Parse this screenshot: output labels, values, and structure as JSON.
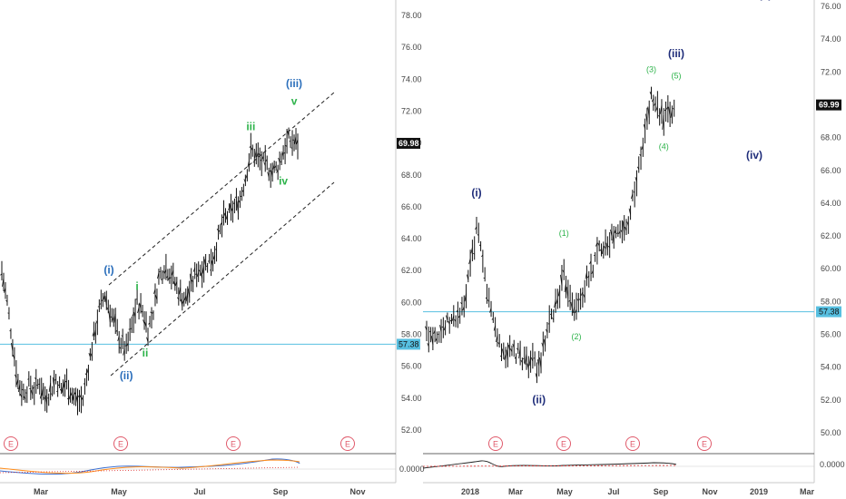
{
  "colors": {
    "blue_wave": "#2a6ebb",
    "navy_wave": "#1f2d7a",
    "green_wave": "#2db34a",
    "hline": "#57bfe0",
    "earnings": "#e05a6b",
    "candles": "#111111"
  },
  "left_panel": {
    "price_label": "69.98",
    "hline_label": "57.38",
    "earnings_marker": "E",
    "oscillator_label": "0.0000"
  },
  "right_panel": {
    "price_label": "69.99",
    "hline_label": "57.38",
    "earnings_marker": "E",
    "oscillator_label": "0.0000"
  },
  "chart_data": [
    {
      "type": "ohlc",
      "panel": "left",
      "y_ticks": [
        "78.00",
        "76.00",
        "74.00",
        "72.00",
        "70.00",
        "68.00",
        "66.00",
        "64.00",
        "62.00",
        "60.00",
        "58.00",
        "56.00",
        "54.00",
        "52.00"
      ],
      "ylim": [
        51,
        79
      ],
      "x_ticks": [
        "Mar",
        "May",
        "Jul",
        "Sep",
        "Nov"
      ],
      "horizontal_line": 57.38,
      "last_price": 69.98,
      "series": [
        {
          "x": "Feb 2",
          "y": 62.0
        },
        {
          "x": "Feb 6",
          "y": 60.0
        },
        {
          "x": "Feb 10",
          "y": 57.5
        },
        {
          "x": "Feb 14",
          "y": 55.0
        },
        {
          "x": "Feb 18",
          "y": 54.3
        },
        {
          "x": "Feb 22",
          "y": 54.8
        },
        {
          "x": "Feb 26",
          "y": 54.5
        },
        {
          "x": "Mar 2",
          "y": 55.0
        },
        {
          "x": "Mar 6",
          "y": 54.0
        },
        {
          "x": "Mar 10",
          "y": 54.5
        },
        {
          "x": "Mar 14",
          "y": 55.2
        },
        {
          "x": "Mar 18",
          "y": 54.5
        },
        {
          "x": "Mar 22",
          "y": 55.0
        },
        {
          "x": "Mar 26",
          "y": 54.2
        },
        {
          "x": "Mar 30",
          "y": 53.8
        },
        {
          "x": "Apr 3",
          "y": 53.9
        },
        {
          "x": "Apr 7",
          "y": 56.0
        },
        {
          "x": "Apr 11",
          "y": 57.8
        },
        {
          "x": "Apr 15",
          "y": 59.5
        },
        {
          "x": "Apr 19",
          "y": 60.5
        },
        {
          "x": "Apr 23",
          "y": 59.5
        },
        {
          "x": "Apr 27",
          "y": 58.5
        },
        {
          "x": "May 1",
          "y": 57.5
        },
        {
          "x": "May 5",
          "y": 57.0
        },
        {
          "x": "May 9",
          "y": 58.5
        },
        {
          "x": "May 13",
          "y": 60.0
        },
        {
          "x": "May 17",
          "y": 59.5
        },
        {
          "x": "May 21",
          "y": 58.3
        },
        {
          "x": "May 25",
          "y": 59.5
        },
        {
          "x": "May 29",
          "y": 61.5
        },
        {
          "x": "Jun 2",
          "y": 62.3
        },
        {
          "x": "Jun 6",
          "y": 62.0
        },
        {
          "x": "Jun 10",
          "y": 61.2
        },
        {
          "x": "Jun 14",
          "y": 60.5
        },
        {
          "x": "Jun 18",
          "y": 60.2
        },
        {
          "x": "Jun 22",
          "y": 61.0
        },
        {
          "x": "Jun 26",
          "y": 62.0
        },
        {
          "x": "Jun 30",
          "y": 62.2
        },
        {
          "x": "Jul 4",
          "y": 62.5
        },
        {
          "x": "Jul 8",
          "y": 62.8
        },
        {
          "x": "Jul 12",
          "y": 64.0
        },
        {
          "x": "Jul 16",
          "y": 65.2
        },
        {
          "x": "Jul 20",
          "y": 65.5
        },
        {
          "x": "Jul 24",
          "y": 66.0
        },
        {
          "x": "Jul 28",
          "y": 66.5
        },
        {
          "x": "Aug 1",
          "y": 67.8
        },
        {
          "x": "Aug 5",
          "y": 69.5
        },
        {
          "x": "Aug 9",
          "y": 69.2
        },
        {
          "x": "Aug 13",
          "y": 68.8
        },
        {
          "x": "Aug 17",
          "y": 68.5
        },
        {
          "x": "Aug 21",
          "y": 68.2
        },
        {
          "x": "Aug 25",
          "y": 68.5
        },
        {
          "x": "Aug 29",
          "y": 69.5
        },
        {
          "x": "Sep 2",
          "y": 70.2
        },
        {
          "x": "Sep 6",
          "y": 70.0
        },
        {
          "x": "Sep 10",
          "y": 69.98
        }
      ]
    },
    {
      "type": "ohlc",
      "panel": "right",
      "y_ticks": [
        "76.00",
        "74.00",
        "72.00",
        "70.00",
        "68.00",
        "66.00",
        "64.00",
        "62.00",
        "60.00",
        "58.00",
        "56.00",
        "54.00",
        "52.00",
        "50.00"
      ],
      "ylim": [
        49,
        77
      ],
      "x_ticks": [
        "2018",
        "Mar",
        "May",
        "Jul",
        "Sep",
        "Nov",
        "2019",
        "Mar"
      ],
      "horizontal_line": 57.38,
      "last_price": 69.99,
      "series": [
        {
          "x": "Nov 2017",
          "y": 56.0
        },
        {
          "x": "Dec 2017",
          "y": 56.2
        },
        {
          "x": "Dec 2017 b",
          "y": 56.8
        },
        {
          "x": "Jan 2018",
          "y": 57.5
        },
        {
          "x": "Jan 2018 b",
          "y": 62.5
        },
        {
          "x": "Feb 2018",
          "y": 58.0
        },
        {
          "x": "Feb 2018 b",
          "y": 55.0
        },
        {
          "x": "Mar 2018",
          "y": 54.8
        },
        {
          "x": "Mar 2018 b",
          "y": 54.5
        },
        {
          "x": "Apr 2018",
          "y": 54.0
        },
        {
          "x": "Apr 2018 b",
          "y": 57.0
        },
        {
          "x": "May 2018",
          "y": 59.5
        },
        {
          "x": "May 2018 b",
          "y": 57.5
        },
        {
          "x": "Jun 2018",
          "y": 59.5
        },
        {
          "x": "Jun 2018 b",
          "y": 61.5
        },
        {
          "x": "Jul 2018",
          "y": 62.0
        },
        {
          "x": "Jul 2018 b",
          "y": 62.5
        },
        {
          "x": "Aug 2018",
          "y": 66.0
        },
        {
          "x": "Aug 2018 b",
          "y": 70.5
        },
        {
          "x": "Sep 2018",
          "y": 69.0
        },
        {
          "x": "Sep 2018 b",
          "y": 69.99
        }
      ]
    }
  ],
  "annotations": {
    "left": [
      {
        "label": "(i)",
        "color": "blue_wave",
        "x": "Apr 21",
        "y": 61.8,
        "small": false
      },
      {
        "label": "(ii)",
        "color": "blue_wave",
        "x": "May 5",
        "y": 55.2,
        "small": false
      },
      {
        "label": "i",
        "color": "green_wave",
        "x": "May 13",
        "y": 60.8,
        "small": false
      },
      {
        "label": "ii",
        "color": "green_wave",
        "x": "May 15",
        "y": 56.6,
        "small": false
      },
      {
        "label": "iii",
        "color": "green_wave",
        "x": "Aug 5",
        "y": 70.8,
        "small": false
      },
      {
        "label": "iv",
        "color": "green_wave",
        "x": "Aug 29",
        "y": 67.4,
        "small": false
      },
      {
        "label": "v",
        "color": "green_wave",
        "x": "Sep 6",
        "y": 72.4,
        "small": false
      },
      {
        "label": "(iii)",
        "color": "blue_wave",
        "x": "Sep 6",
        "y": 73.5,
        "small": false
      }
    ],
    "right": [
      {
        "label": "(i)",
        "color": "navy_wave",
        "x": "Jan 2018 b",
        "y": 64.4,
        "small": false
      },
      {
        "label": "(ii)",
        "color": "navy_wave",
        "x": "Apr 2018",
        "y": 51.8,
        "small": false
      },
      {
        "label": "(1)",
        "color": "green_wave",
        "x": "May 2018",
        "y": 62.0,
        "small": true
      },
      {
        "label": "(2)",
        "color": "green_wave",
        "x": "May 2018 b",
        "y": 55.7,
        "small": true
      },
      {
        "label": "(3)",
        "color": "green_wave",
        "x": "Aug 2018 b",
        "y": 72.0,
        "small": true
      },
      {
        "label": "(4)",
        "color": "green_wave",
        "x": "Sep 2018",
        "y": 67.3,
        "small": true
      },
      {
        "label": "(5)",
        "color": "green_wave",
        "x": "Sep 2018 b",
        "y": 71.6,
        "small": true
      },
      {
        "label": "(iii)",
        "color": "navy_wave",
        "x": "Sep 2018 b",
        "y": 72.9,
        "small": false
      },
      {
        "label": "(iv)",
        "color": "navy_wave",
        "x": "Dec 2018",
        "y": 66.7,
        "small": false
      },
      {
        "label": "(v)",
        "color": "navy_wave",
        "x": "Jan 2019",
        "y": 76.5,
        "small": false
      }
    ]
  }
}
